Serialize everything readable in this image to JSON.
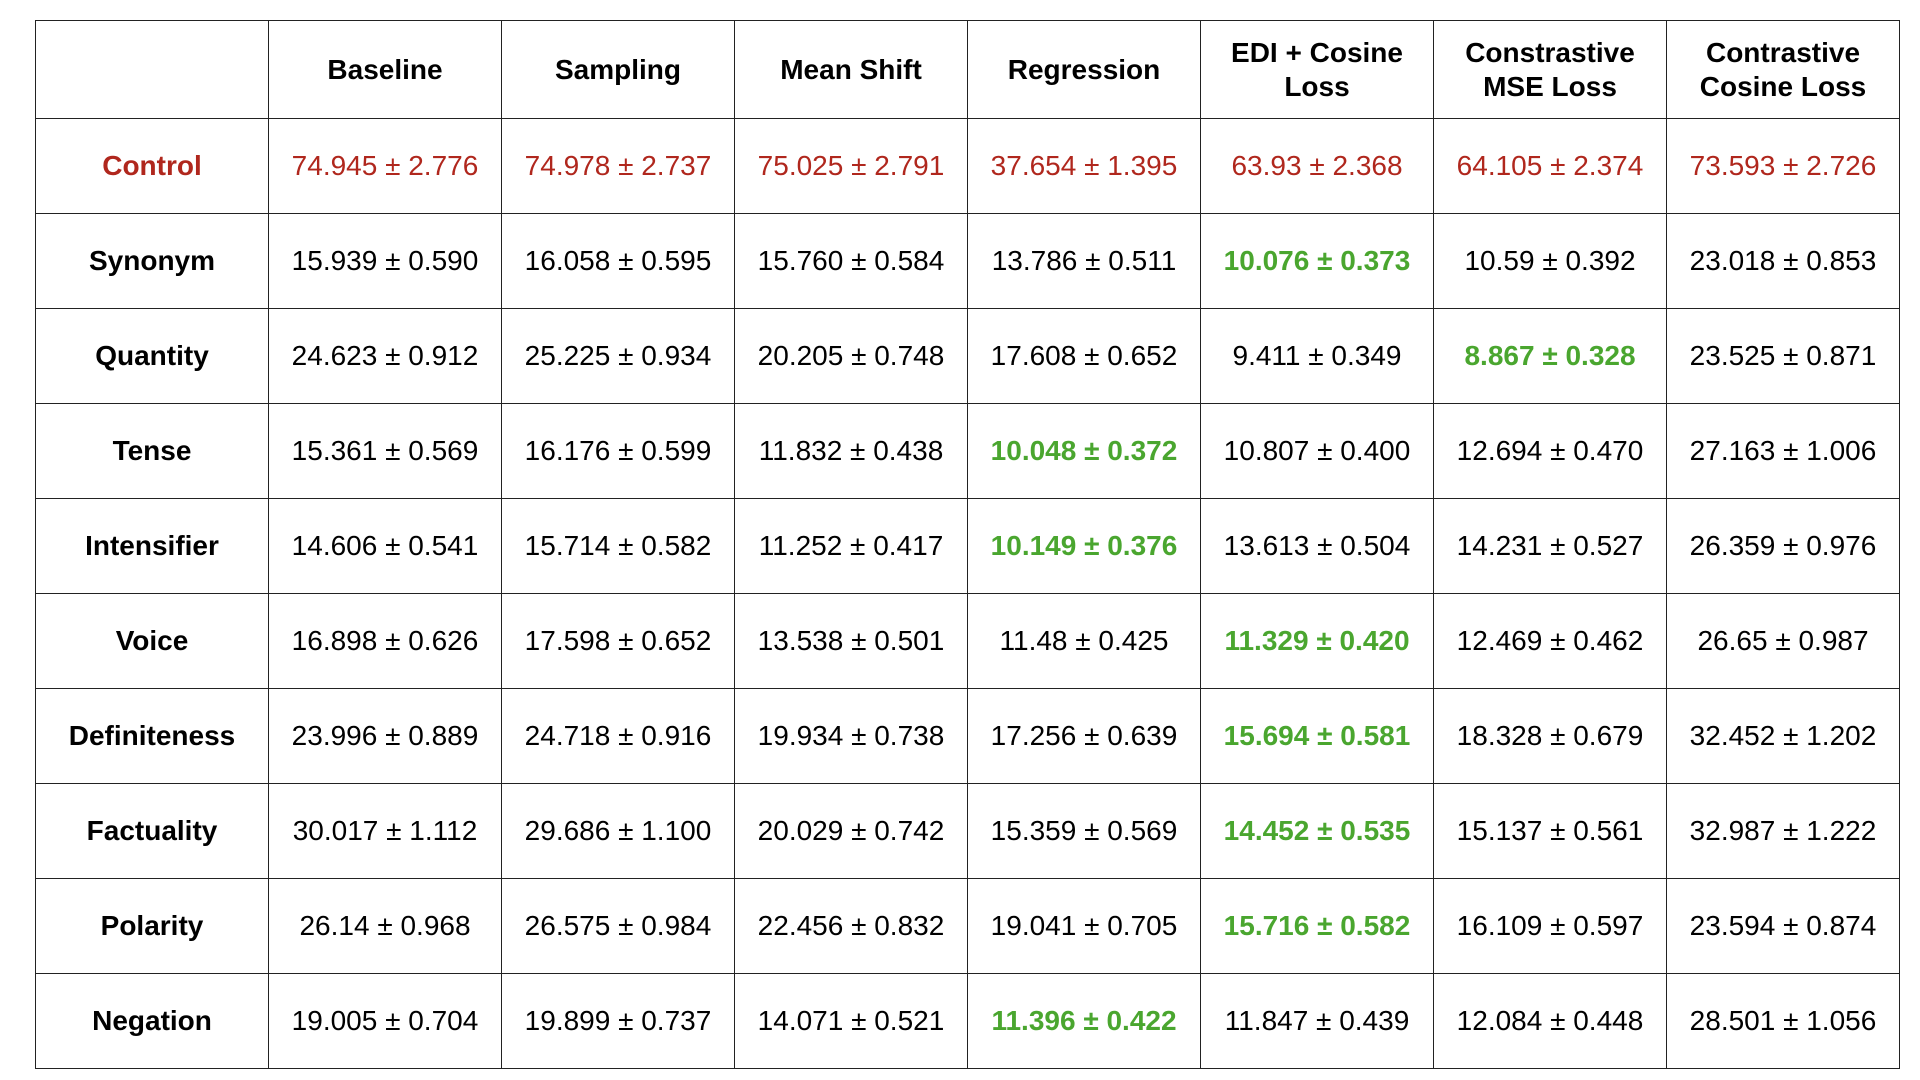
{
  "table": {
    "columns": [
      "",
      "Baseline",
      "Sampling",
      "Mean Shift",
      "Regression",
      "EDI + Cosine Loss",
      "Constrastive MSE Loss",
      "Contrastive Cosine Loss"
    ],
    "rows": [
      {
        "label": "Control",
        "values": [
          "74.945 ± 2.776",
          "74.978 ± 2.737",
          "75.025 ± 2.791",
          "37.654 ± 1.395",
          "63.93 ± 2.368",
          "64.105 ± 2.374",
          "73.593 ± 2.726"
        ],
        "best_index": -1
      },
      {
        "label": "Synonym",
        "values": [
          "15.939 ± 0.590",
          "16.058 ± 0.595",
          "15.760 ± 0.584",
          "13.786 ± 0.511",
          "10.076 ± 0.373",
          "10.59 ± 0.392",
          "23.018 ± 0.853"
        ],
        "best_index": 4
      },
      {
        "label": "Quantity",
        "values": [
          "24.623 ± 0.912",
          "25.225 ± 0.934",
          "20.205 ± 0.748",
          "17.608 ± 0.652",
          "9.411 ± 0.349",
          "8.867 ± 0.328",
          "23.525 ± 0.871"
        ],
        "best_index": 5
      },
      {
        "label": "Tense",
        "values": [
          "15.361 ± 0.569",
          "16.176 ± 0.599",
          "11.832 ± 0.438",
          "10.048 ± 0.372",
          "10.807 ± 0.400",
          "12.694 ± 0.470",
          "27.163 ± 1.006"
        ],
        "best_index": 3
      },
      {
        "label": "Intensifier",
        "values": [
          "14.606 ± 0.541",
          "15.714 ± 0.582",
          "11.252 ± 0.417",
          "10.149 ± 0.376",
          "13.613 ± 0.504",
          "14.231 ± 0.527",
          "26.359 ± 0.976"
        ],
        "best_index": 3
      },
      {
        "label": "Voice",
        "values": [
          "16.898 ± 0.626",
          "17.598 ± 0.652",
          "13.538 ± 0.501",
          "11.48 ± 0.425",
          "11.329 ± 0.420",
          "12.469 ± 0.462",
          "26.65 ± 0.987"
        ],
        "best_index": 4
      },
      {
        "label": "Definiteness",
        "values": [
          "23.996 ± 0.889",
          "24.718 ± 0.916",
          "19.934 ± 0.738",
          "17.256 ± 0.639",
          "15.694 ± 0.581",
          "18.328 ± 0.679",
          "32.452 ± 1.202"
        ],
        "best_index": 4
      },
      {
        "label": "Factuality",
        "values": [
          "30.017 ± 1.112",
          "29.686 ± 1.100",
          "20.029 ± 0.742",
          "15.359 ± 0.569",
          "14.452 ± 0.535",
          "15.137 ± 0.561",
          "32.987 ± 1.222"
        ],
        "best_index": 4
      },
      {
        "label": "Polarity",
        "values": [
          "26.14 ± 0.968",
          "26.575 ± 0.984",
          "22.456 ± 0.832",
          "19.041 ± 0.705",
          "15.716 ± 0.582",
          "16.109 ± 0.597",
          "23.594 ± 0.874"
        ],
        "best_index": 4
      },
      {
        "label": "Negation",
        "values": [
          "19.005 ± 0.704",
          "19.899 ± 0.737",
          "14.071 ± 0.521",
          "11.396 ± 0.422",
          "11.847 ± 0.439",
          "12.084 ± 0.448",
          "28.501 ± 1.056"
        ],
        "best_index": 3
      }
    ]
  },
  "colors": {
    "control_text": "#b0271d",
    "best_text": "#4aa62f",
    "default_text": "#000000",
    "border": "#222222",
    "background": "#ffffff"
  }
}
